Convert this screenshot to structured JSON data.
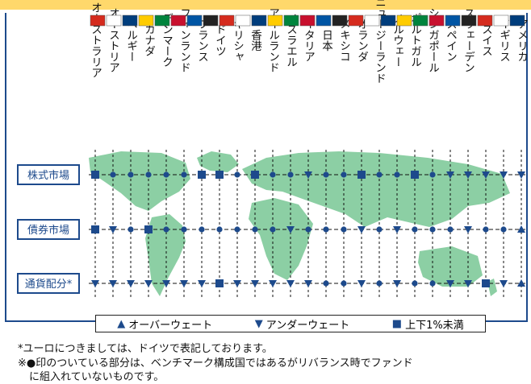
{
  "chart_data": {
    "type": "table",
    "title": "",
    "countries": [
      "オーストラリア",
      "オーストリア",
      "ベルギー",
      "カナダ",
      "デンマーク",
      "フィンランド",
      "フランス",
      "ドイツ",
      "ギリシャ",
      "香港",
      "アイルランド",
      "イスラエル",
      "イタリア",
      "日本",
      "メキシコ",
      "オランダ",
      "ニュージーランド",
      "ノルウェー",
      "ポルトガル",
      "シンガポール",
      "スペイン",
      "スウェーデン",
      "スイス",
      "イギリス",
      "アメリカ"
    ],
    "rows": [
      {
        "label": "株式市場",
        "markers": [
          "square",
          "dot",
          "dot",
          "dot",
          "dot",
          "dot",
          "square",
          "square",
          "dot",
          "square",
          "dot",
          "dot",
          "down",
          "dot",
          "dot",
          "square",
          "dot",
          "dot",
          "square",
          "dot",
          "down",
          "down",
          "down",
          "down",
          "down"
        ]
      },
      {
        "label": "債券市場",
        "markers": [
          "square",
          "down",
          "dot",
          "square",
          "dot",
          "dot",
          "dot",
          "dot",
          "dot",
          "dot",
          "dot",
          "down",
          "dot",
          "dot",
          "dot",
          "down",
          "dot",
          "down",
          "dot",
          "dot",
          "dot",
          "down",
          "dot",
          "dot",
          "up"
        ]
      },
      {
        "label": "通貨配分*",
        "markers": [
          "down",
          "down",
          "down",
          "down",
          "down",
          "down",
          "down",
          "square",
          "down",
          "down",
          "down",
          "down",
          "down",
          "dot",
          "dot",
          "down",
          "dot",
          "down",
          "dot",
          "dot",
          "down",
          "down",
          "square",
          "down",
          "up"
        ]
      }
    ],
    "legend": [
      {
        "symbol": "▲",
        "label": "オーバーウェート"
      },
      {
        "symbol": "▼",
        "label": "アンダーウェート"
      },
      {
        "symbol": "■",
        "label": "上下1%未満"
      }
    ]
  },
  "notes": [
    "*ユーロにつきましては、ドイツで表記しております。",
    "※●印のついている部分は、ベンチマーク構成国ではあるがリバランス時でファンド",
    "に組入れていないものです。"
  ],
  "colors": {
    "accent": "#1d4a8c",
    "map": "#8ccfa4",
    "banner": "#ffd86b"
  }
}
